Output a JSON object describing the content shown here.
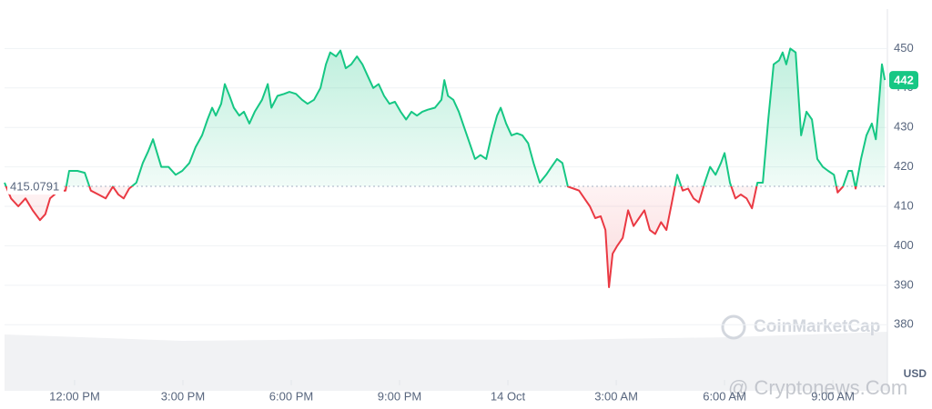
{
  "chart_data": {
    "type": "line",
    "x": [
      10.06,
      10.24,
      10.44,
      10.64,
      10.84,
      11.04,
      11.19,
      11.32,
      11.57,
      11.75,
      11.85,
      12.08,
      12.28,
      12.45,
      12.66,
      12.86,
      13.06,
      13.21,
      13.36,
      13.51,
      13.71,
      13.89,
      14.04,
      14.17,
      14.27,
      14.4,
      14.6,
      14.8,
      14.98,
      15.18,
      15.35,
      15.53,
      15.68,
      15.81,
      15.91,
      16.06,
      16.16,
      16.29,
      16.41,
      16.56,
      16.69,
      16.84,
      16.99,
      17.19,
      17.35,
      17.45,
      17.62,
      17.8,
      17.95,
      18.13,
      18.3,
      18.45,
      18.63,
      18.81,
      18.96,
      19.08,
      19.24,
      19.36,
      19.51,
      19.66,
      19.82,
      19.97,
      20.12,
      20.27,
      20.42,
      20.57,
      20.72,
      20.87,
      21.03,
      21.18,
      21.33,
      21.48,
      21.63,
      21.78,
      21.98,
      22.16,
      22.24,
      22.34,
      22.49,
      22.64,
      22.79,
      22.94,
      23.09,
      23.24,
      23.4,
      23.55,
      23.7,
      23.8,
      23.95,
      24.1,
      24.25,
      24.4,
      24.56,
      24.71,
      24.88,
      25.06,
      25.21,
      25.36,
      25.51,
      25.66,
      25.82,
      25.97,
      26.12,
      26.27,
      26.42,
      26.57,
      26.7,
      26.8,
      26.9,
      27.03,
      27.18,
      27.33,
      27.48,
      27.63,
      27.78,
      27.93,
      28.08,
      28.24,
      28.39,
      28.54,
      28.69,
      28.84,
      28.99,
      29.14,
      29.29,
      29.45,
      29.6,
      29.75,
      29.9,
      30.0,
      30.15,
      30.3,
      30.45,
      30.61,
      30.76,
      30.91,
      31.06,
      31.21,
      31.36,
      31.51,
      31.61,
      31.71,
      31.82,
      31.97,
      32.12,
      32.27,
      32.42,
      32.57,
      32.72,
      32.87,
      33.03,
      33.13,
      33.28,
      33.43,
      33.53,
      33.63,
      33.78,
      33.93,
      34.08,
      34.19,
      34.29,
      34.36,
      34.44
    ],
    "values": [
      416,
      412,
      410,
      412,
      409,
      406.5,
      408,
      412,
      414,
      414,
      419,
      419,
      418.5,
      414,
      413,
      412,
      415,
      413,
      412,
      414.5,
      416,
      421,
      424,
      427,
      424,
      420,
      420,
      418,
      419,
      421,
      425,
      428,
      432,
      435,
      433,
      436,
      441,
      438,
      435,
      433,
      434,
      431,
      434,
      437,
      441,
      435,
      438,
      438.5,
      439,
      438.5,
      437,
      436,
      437,
      440,
      446,
      449,
      448,
      449.5,
      445,
      446,
      448,
      446,
      443,
      440,
      441,
      438,
      436,
      436.5,
      434,
      432,
      434,
      433,
      434,
      434.5,
      435,
      437,
      442,
      438,
      437,
      434,
      430,
      426,
      422,
      423,
      422,
      428,
      433,
      435,
      431,
      428,
      428.5,
      428,
      426,
      421,
      416,
      418,
      420,
      422,
      421,
      415,
      414.5,
      414,
      412,
      410,
      407,
      407.5,
      404,
      389.5,
      398,
      400,
      402,
      409,
      405,
      407,
      409,
      404,
      403,
      406,
      404,
      411,
      418,
      414,
      414.5,
      412,
      411,
      416,
      420,
      418,
      421,
      423.5,
      416,
      412,
      413,
      412,
      409.5,
      416,
      416,
      432,
      446,
      447,
      449,
      446,
      450,
      449,
      428,
      434,
      432,
      422,
      420,
      419,
      418,
      413.5,
      415,
      419,
      419,
      414.5,
      422,
      428,
      431,
      427,
      438,
      446,
      442
    ],
    "baseline": 415.0791,
    "up_color": "#16c784",
    "down_color": "#ea3943",
    "xlim": [
      10.06,
      34.51
    ],
    "xticks": [
      {
        "value": 12,
        "label": "12:00 PM"
      },
      {
        "value": 15,
        "label": "3:00 PM"
      },
      {
        "value": 18,
        "label": "6:00 PM"
      },
      {
        "value": 21,
        "label": "9:00 PM"
      },
      {
        "value": 24,
        "label": "14 Oct"
      },
      {
        "value": 27,
        "label": "3:00 AM"
      },
      {
        "value": 30,
        "label": "6:00 AM"
      },
      {
        "value": 33,
        "label": "9:00 AM"
      }
    ],
    "ylim": [
      366,
      460
    ],
    "yticks": [
      380,
      390,
      400,
      410,
      420,
      430,
      440,
      450
    ],
    "y_unit": "USD",
    "grid": true,
    "watermarks": [
      "CoinMarketCap",
      "@ Cryptonews.Com"
    ]
  }
}
